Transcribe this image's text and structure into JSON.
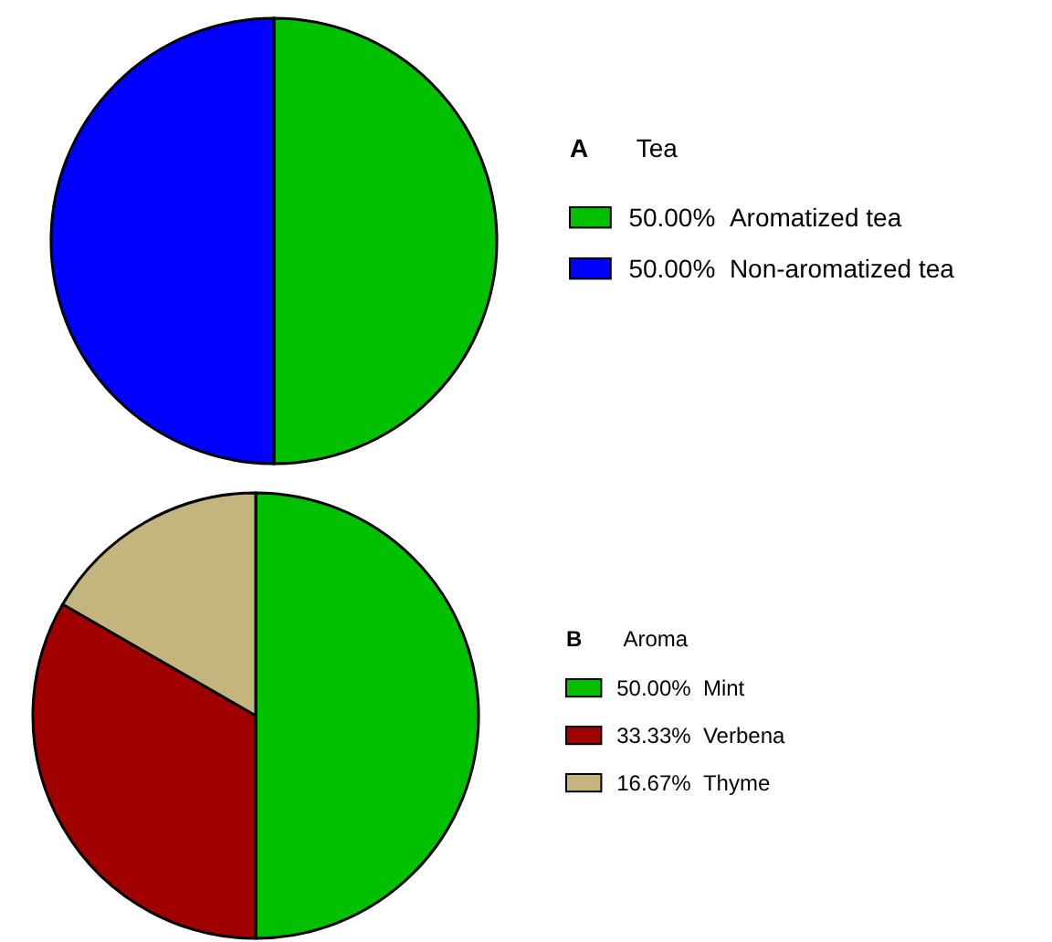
{
  "chart_data": [
    {
      "type": "pie",
      "title": "A",
      "legend_title": "Tea",
      "categories": [
        "Aromatized tea",
        "Non-aromatized tea"
      ],
      "values": [
        50,
        50
      ],
      "value_labels": [
        "50.00%",
        "50.00%"
      ],
      "colors": [
        "#00c000",
        "#0000ff"
      ],
      "legend": "right"
    },
    {
      "type": "pie",
      "title": "B",
      "legend_title": "Aroma",
      "categories": [
        "Mint",
        "Verbena",
        "Thyme"
      ],
      "values": [
        50,
        33.33,
        16.67
      ],
      "value_labels": [
        "50.00%",
        "33.33%",
        "16.67%"
      ],
      "colors": [
        "#00c000",
        "#a00000",
        "#c4b57f"
      ],
      "legend": "right"
    }
  ]
}
